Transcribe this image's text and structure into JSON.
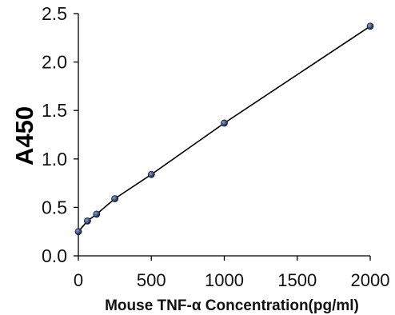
{
  "chart_data": {
    "type": "line",
    "title": "",
    "xlabel": "Mouse TNF-α Concentration(pg/ml)",
    "ylabel": "A450",
    "xlim": [
      0,
      2000
    ],
    "ylim": [
      0,
      2.5
    ],
    "x_ticks": [
      "0",
      "500",
      "1000",
      "1500",
      "2000"
    ],
    "y_ticks": [
      "0.0",
      "0.5",
      "1.0",
      "1.5",
      "2.0",
      "2.5"
    ],
    "x_tick_values": [
      0,
      500,
      1000,
      1500,
      2000
    ],
    "y_tick_values": [
      0,
      0.5,
      1.0,
      1.5,
      2.0,
      2.5
    ],
    "grid": false,
    "legend": "none",
    "series": [
      {
        "x": [
          0,
          62.5,
          125,
          250,
          500,
          1000,
          2000
        ],
        "y": [
          0.25,
          0.36,
          0.43,
          0.59,
          0.84,
          1.37,
          2.37
        ]
      }
    ],
    "colors": {
      "line": "#000000",
      "marker": "#0b1a3a",
      "marker_highlight": "#8fa0c8",
      "axis": "#000000",
      "text": "#111111"
    }
  }
}
